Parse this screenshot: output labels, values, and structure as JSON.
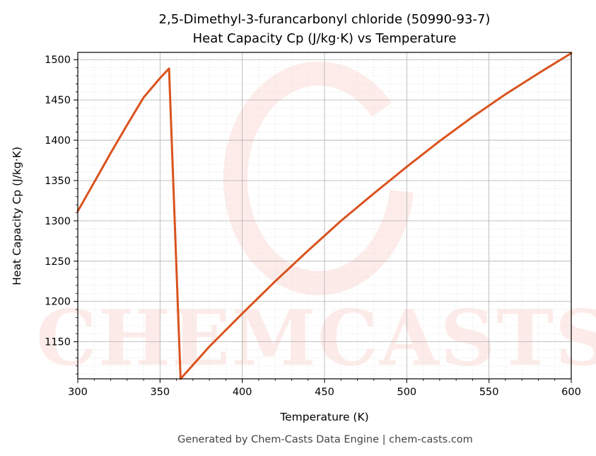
{
  "chart_data": {
    "type": "line",
    "title_line1": "2,5-Dimethyl-3-furancarbonyl chloride (50990-93-7)",
    "title_line2": "Heat Capacity Cp (J/kg·K) vs Temperature",
    "xlabel": "Temperature (K)",
    "ylabel": "Heat Capacity Cp (J/kg·K)",
    "xlim": [
      300,
      600
    ],
    "ylim": [
      1104,
      1509
    ],
    "x_ticks": [
      300,
      350,
      400,
      450,
      500,
      550,
      600
    ],
    "y_ticks": [
      1150,
      1200,
      1250,
      1300,
      1350,
      1400,
      1450,
      1500
    ],
    "grid": true,
    "line_color": "#d9531e",
    "series": [
      {
        "x": [
          300,
          310,
          320,
          330,
          340,
          350,
          355.5,
          362.5,
          380,
          400,
          420,
          440,
          460,
          480,
          500,
          520,
          540,
          560,
          580,
          600
        ],
        "values": [
          1312,
          1348,
          1384,
          1419,
          1453,
          1477,
          1489,
          1104,
          1144,
          1185,
          1225,
          1263,
          1300,
          1334,
          1367,
          1399,
          1429,
          1457,
          1483,
          1508
        ]
      }
    ]
  },
  "watermark": "CHEMCASTS",
  "footer": "Generated by Chem-Casts Data Engine | chem-casts.com"
}
